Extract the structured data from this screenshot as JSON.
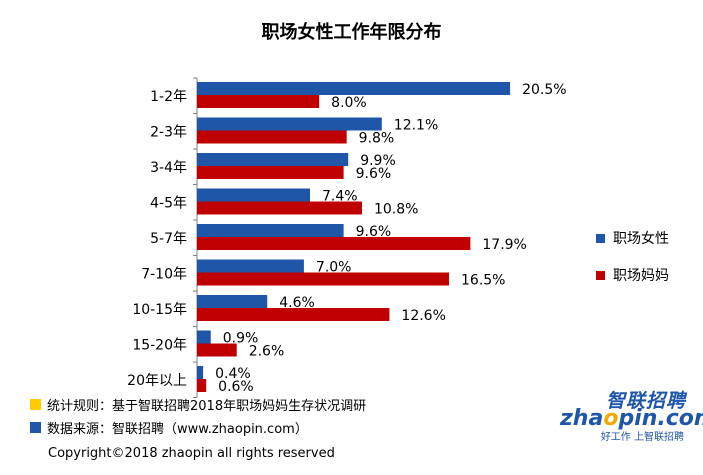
{
  "chart_data": {
    "type": "bar",
    "orientation": "horizontal",
    "title": "职场女性工作年限分布",
    "categories": [
      "1-2年",
      "2-3年",
      "3-4年",
      "4-5年",
      "5-7年",
      "7-10年",
      "10-15年",
      "15-20年",
      "20年以上"
    ],
    "series": [
      {
        "name": "职场女性",
        "color": "#1f56a8",
        "values": [
          20.5,
          12.1,
          9.9,
          7.4,
          9.6,
          7.0,
          4.6,
          0.9,
          0.4
        ]
      },
      {
        "name": "职场妈妈",
        "color": "#c00000",
        "values": [
          8.0,
          9.8,
          9.6,
          10.8,
          17.9,
          16.5,
          12.6,
          2.6,
          0.6
        ]
      }
    ],
    "value_suffix": "%",
    "xlim": [
      0,
      22
    ],
    "grid": false,
    "legend_position": "right"
  },
  "notes": [
    {
      "text": "统计规则：基于智联招聘2018年职场妈妈生存状况调研",
      "color": "#ffcc00"
    },
    {
      "text": "数据来源：智联招聘（www.zhaopin.com）",
      "color": "#1f56a8"
    }
  ],
  "copyright": "Copyright©2018 zhaopin all rights reserved",
  "logo": {
    "cn": "智联招聘",
    "en_pre": "zha",
    "en_o": "o",
    "en_post": "pin.com",
    "slogan": "好工作 上智联招聘"
  }
}
